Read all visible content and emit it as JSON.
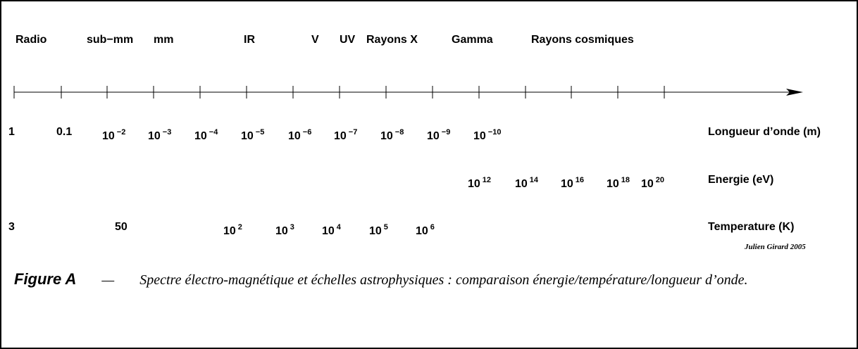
{
  "bands": [
    "Radio",
    "sub−mm",
    "mm",
    "IR",
    "V",
    "UV",
    "Rayons X",
    "Gamma",
    "Rayons cosmiques"
  ],
  "wavelength": {
    "label": "Longueur d’onde (m)",
    "marks": [
      {
        "text": "1"
      },
      {
        "text": "0.1"
      },
      {
        "text": "10",
        "sup": "−2"
      },
      {
        "text": "10",
        "sup": "−3"
      },
      {
        "text": "10",
        "sup": "−4"
      },
      {
        "text": "10",
        "sup": "−5"
      },
      {
        "text": "10",
        "sup": "−6"
      },
      {
        "text": "10",
        "sup": "−7"
      },
      {
        "text": "10",
        "sup": "−8"
      },
      {
        "text": "10",
        "sup": "−9"
      },
      {
        "text": "10",
        "sup": "−10"
      }
    ]
  },
  "energy": {
    "label": "Energie (eV)",
    "marks": [
      {
        "text": "10",
        "sup": "12"
      },
      {
        "text": "10",
        "sup": "14"
      },
      {
        "text": "10",
        "sup": "16"
      },
      {
        "text": "10",
        "sup": "18"
      },
      {
        "text": "10",
        "sup": "20"
      }
    ]
  },
  "temperature": {
    "label": "Temperature (K)",
    "marks": [
      {
        "text": "3"
      },
      {
        "text": "50"
      },
      {
        "text": "10",
        "sup": "2"
      },
      {
        "text": "10",
        "sup": "3"
      },
      {
        "text": "10",
        "sup": "4"
      },
      {
        "text": "10",
        "sup": "5"
      },
      {
        "text": "10",
        "sup": "6"
      }
    ]
  },
  "credit": "Julien Girard 2005",
  "caption": {
    "label": "Figure A",
    "dash": "—",
    "text": "Spectre électro-magnétique et échelles astrophysiques : comparaison éner­gie/température/longueur d’onde."
  }
}
